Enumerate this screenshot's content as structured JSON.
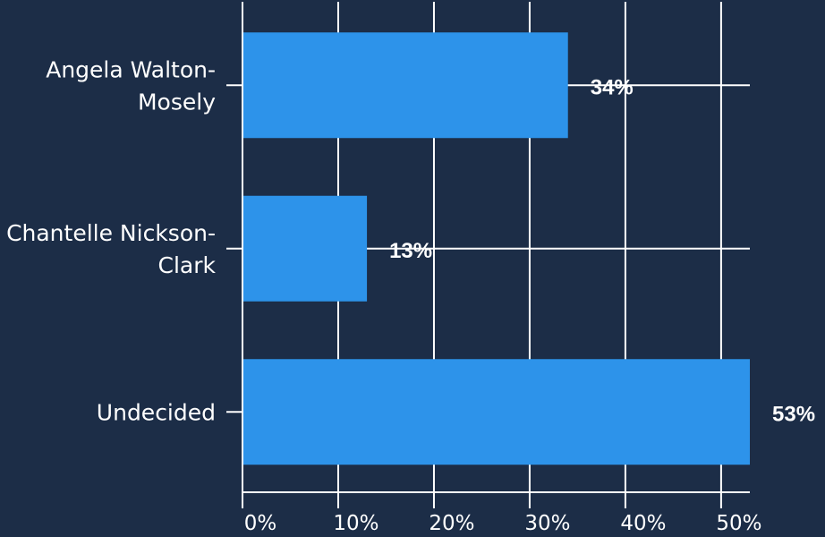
{
  "chart_data": {
    "type": "bar",
    "orientation": "horizontal",
    "categories": [
      "Angela Walton-Mosely",
      "Chantelle Nickson-Clark",
      "Undecided"
    ],
    "values": [
      34,
      13,
      53
    ],
    "value_labels": [
      "34%",
      "13%",
      "53%"
    ],
    "xlim": [
      0,
      53
    ],
    "x_ticks": [
      0,
      10,
      20,
      30,
      40,
      50
    ],
    "x_tick_labels": [
      "0%",
      "10%",
      "20%",
      "30%",
      "40%",
      "50%"
    ],
    "grid": true,
    "legend": "none",
    "colors": {
      "background": "#1c2d47",
      "bar": "#2d93ea",
      "grid": "#ffffff",
      "text": "#ffffff"
    }
  }
}
